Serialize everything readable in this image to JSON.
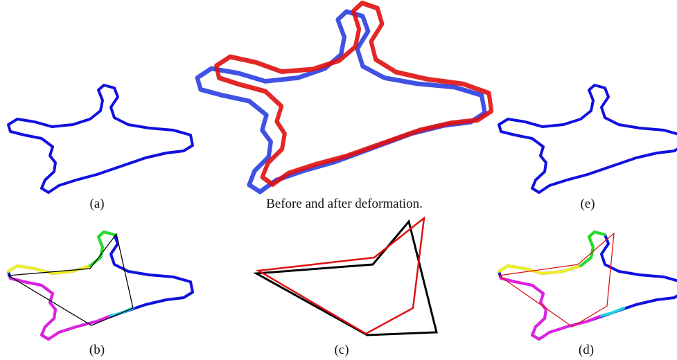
{
  "captions": {
    "a": "(a)",
    "center": "Before and after deformation.",
    "e": "(e)",
    "b": "(b)",
    "c": "(c)",
    "d": "(d)"
  }
}
